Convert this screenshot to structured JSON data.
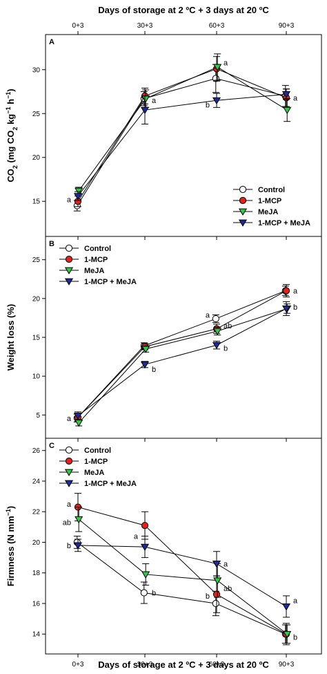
{
  "x_title": "Days of storage at 2 ºC + 3 days at 20 ºC",
  "categories": [
    "0+3",
    "30+3",
    "60+3",
    "90+3"
  ],
  "legend": [
    "Control",
    "1-MCP",
    "MeJA",
    "1-MCP + MeJA"
  ],
  "colors": {
    "Control": "#ffffff",
    "1-MCP": "#e32119",
    "MeJA": "#2ecc40",
    "1-MCP + MeJA": "#1c2a9e",
    "stroke": "#000000"
  },
  "chart_data": [
    {
      "type": "line",
      "panel": "A",
      "ylabel_main": "CO",
      "ylabel_sub": "2",
      "ylabel_unit_open": " (mg CO",
      "ylabel_unit_sub": "2",
      "ylabel_unit_mid": " kg",
      "ylabel_unit_sup1": "−1",
      "ylabel_unit_h": " h",
      "ylabel_unit_sup2": "−1",
      "ylabel_unit_close": ")",
      "ylim": [
        11,
        34
      ],
      "yticks": [
        15,
        20,
        25,
        30
      ],
      "legend_position": "bottom-right",
      "series": [
        {
          "name": "Control",
          "marker": "circle",
          "values": [
            14.5,
            26.7,
            29.0,
            27.0
          ],
          "err": [
            0.6,
            0.8,
            1.6,
            1.2
          ]
        },
        {
          "name": "1-MCP",
          "marker": "circle",
          "values": [
            15.0,
            27.0,
            30.1,
            26.8
          ],
          "err": [
            0.6,
            0.9,
            1.4,
            1.0
          ]
        },
        {
          "name": "MeJA",
          "marker": "triangle-down",
          "values": [
            16.2,
            26.7,
            30.3,
            25.4
          ],
          "err": [
            0.4,
            1.0,
            1.5,
            1.3
          ]
        },
        {
          "name": "1-MCP + MeJA",
          "marker": "triangle-down",
          "values": [
            15.6,
            25.4,
            26.5,
            27.2
          ],
          "err": [
            0.5,
            1.6,
            0.8,
            0.6
          ]
        }
      ],
      "annotations": [
        {
          "text": "a",
          "x": 0,
          "y": 15.2,
          "side": "left"
        },
        {
          "text": "a",
          "x": 1,
          "y": 26.5,
          "side": "right"
        },
        {
          "text": "a",
          "x": 2,
          "y": 30.8,
          "side": "right"
        },
        {
          "text": "b",
          "x": 2,
          "y": 26.0,
          "side": "left"
        },
        {
          "text": "a",
          "x": 3,
          "y": 26.8,
          "side": "right"
        }
      ]
    },
    {
      "type": "line",
      "panel": "B",
      "ylabel": "Weight loss (%)",
      "ylim": [
        2,
        28
      ],
      "yticks": [
        5,
        10,
        15,
        20,
        25
      ],
      "legend_position": "top-left",
      "series": [
        {
          "name": "Control",
          "marker": "circle",
          "values": [
            4.6,
            13.9,
            17.4,
            21.0
          ],
          "err": [
            0.5,
            0.4,
            0.5,
            0.6
          ]
        },
        {
          "name": "1-MCP",
          "marker": "circle",
          "values": [
            4.7,
            13.8,
            16.1,
            21.0
          ],
          "err": [
            0.5,
            0.4,
            0.6,
            0.8
          ]
        },
        {
          "name": "MeJA",
          "marker": "triangle-down",
          "values": [
            4.0,
            13.5,
            15.8,
            18.7
          ],
          "err": [
            0.4,
            0.4,
            0.5,
            0.6
          ]
        },
        {
          "name": "1-MCP + MeJA",
          "marker": "triangle-down",
          "values": [
            4.9,
            11.5,
            14.0,
            18.7
          ],
          "err": [
            0.5,
            0.4,
            0.5,
            0.9
          ]
        }
      ],
      "annotations": [
        {
          "text": "a",
          "x": 0,
          "y": 4.6,
          "side": "left"
        },
        {
          "text": "b",
          "x": 1,
          "y": 10.9,
          "side": "right"
        },
        {
          "text": "a",
          "x": 2,
          "y": 17.9,
          "side": "left"
        },
        {
          "text": "ab",
          "x": 2,
          "y": 16.5,
          "side": "right"
        },
        {
          "text": "b",
          "x": 2,
          "y": 13.6,
          "side": "right"
        },
        {
          "text": "a",
          "x": 3,
          "y": 21.0,
          "side": "right"
        },
        {
          "text": "b",
          "x": 3,
          "y": 18.9,
          "side": "right"
        }
      ]
    },
    {
      "type": "line",
      "panel": "C",
      "ylabel": "Firmness (N mm",
      "ylabel_sup": "−1",
      "ylabel_close": ")",
      "ylim": [
        12.7,
        26.8
      ],
      "yticks": [
        14,
        16,
        18,
        20,
        22,
        24,
        26
      ],
      "legend_position": "top-left",
      "series": [
        {
          "name": "Control",
          "marker": "circle",
          "values": [
            20.0,
            16.7,
            16.0,
            14.0
          ],
          "err": [
            0.4,
            0.7,
            0.8,
            0.6
          ]
        },
        {
          "name": "1-MCP",
          "marker": "circle",
          "values": [
            22.3,
            21.1,
            16.6,
            14.0
          ],
          "err": [
            0.9,
            0.9,
            1.2,
            0.7
          ]
        },
        {
          "name": "MeJA",
          "marker": "triangle-down",
          "values": [
            21.5,
            17.9,
            17.5,
            14.0
          ],
          "err": [
            0.8,
            0.7,
            1.1,
            0.6
          ]
        },
        {
          "name": "1-MCP + MeJA",
          "marker": "triangle-down",
          "values": [
            19.8,
            19.7,
            18.6,
            15.8
          ],
          "err": [
            0.4,
            0.7,
            0.8,
            0.7
          ]
        }
      ],
      "annotations": [
        {
          "text": "a",
          "x": 0,
          "y": 22.5,
          "side": "left"
        },
        {
          "text": "ab",
          "x": 0,
          "y": 21.3,
          "side": "left"
        },
        {
          "text": "b",
          "x": 0,
          "y": 19.8,
          "side": "left"
        },
        {
          "text": "a",
          "x": 1,
          "y": 20.4,
          "side": "left"
        },
        {
          "text": "b",
          "x": 1,
          "y": 16.7,
          "side": "right"
        },
        {
          "text": "a",
          "x": 2,
          "y": 18.6,
          "side": "right"
        },
        {
          "text": "ab",
          "x": 2,
          "y": 17.0,
          "side": "right"
        },
        {
          "text": "b",
          "x": 2,
          "y": 16.5,
          "side": "left"
        },
        {
          "text": "a",
          "x": 3,
          "y": 16.2,
          "side": "right"
        },
        {
          "text": "b",
          "x": 3,
          "y": 13.8,
          "side": "right"
        }
      ]
    }
  ]
}
